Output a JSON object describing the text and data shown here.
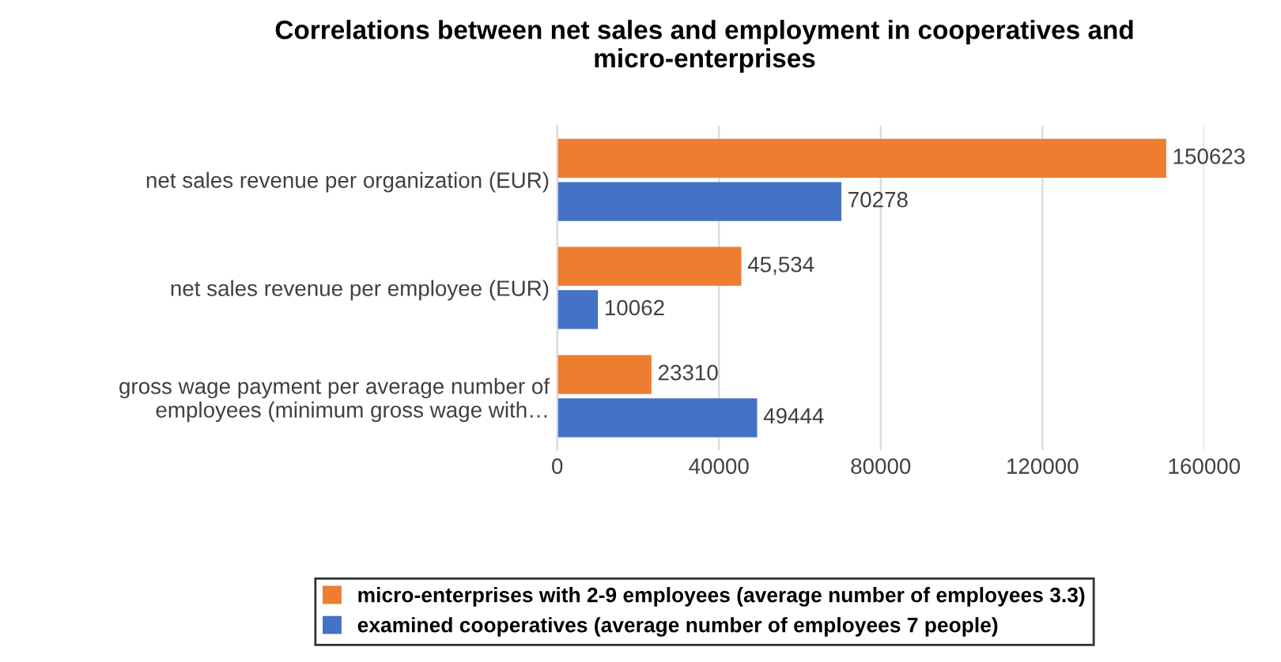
{
  "chart_data": {
    "type": "bar",
    "orientation": "horizontal",
    "title": "Correlations between net sales and employment in cooperatives and\nmicro-enterprises",
    "categories": [
      "net sales revenue per organization (EUR)",
      "net sales revenue per employee (EUR)",
      "gross wage payment per average number of\nemployees (minimum gross wage with…"
    ],
    "series": [
      {
        "name": "micro-enterprises with 2-9 employees (average number of employees 3.3)",
        "color": "#ed7d31",
        "values": [
          150623,
          45534,
          23310
        ],
        "value_labels": [
          "150623",
          "45,534",
          "23310"
        ]
      },
      {
        "name": "examined cooperatives (average number of employees 7 people)",
        "color": "#4472c4",
        "values": [
          70278,
          10062,
          49444
        ],
        "value_labels": [
          "70278",
          "10062",
          "49444"
        ]
      }
    ],
    "xlim": [
      0,
      160000
    ],
    "xticks": [
      0,
      40000,
      80000,
      120000,
      160000
    ],
    "grid": "x",
    "legend": "bottom"
  }
}
